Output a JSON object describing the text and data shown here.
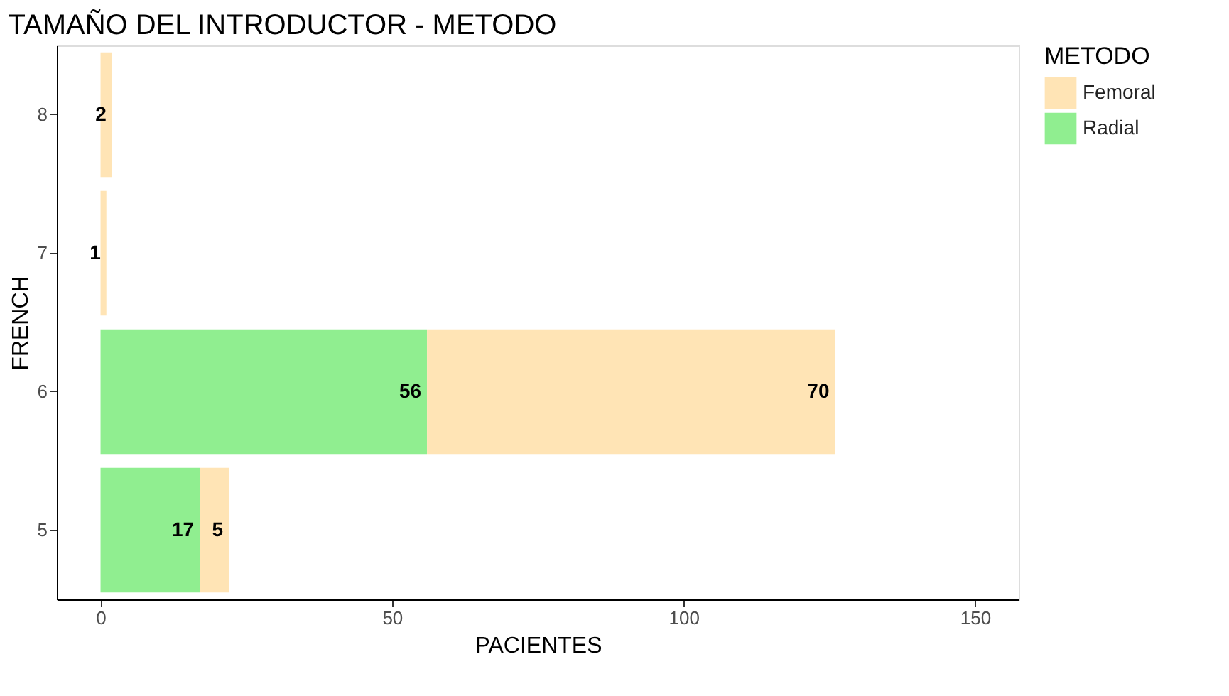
{
  "chart_data": {
    "type": "bar",
    "orientation": "horizontal",
    "stacked": true,
    "title": "TAMAÑO DEL INTRODUCTOR - METODO",
    "xlabel": "PACIENTES",
    "ylabel": "FRENCH",
    "legend_title": "METODO",
    "categories": [
      "8",
      "7",
      "6",
      "5"
    ],
    "series": [
      {
        "name": "Radial",
        "color": "#90ee90",
        "values": [
          null,
          null,
          56,
          17
        ]
      },
      {
        "name": "Femoral",
        "color": "#ffe4b5",
        "values": [
          2,
          1,
          70,
          5
        ]
      }
    ],
    "xlim": [
      -7.5,
      157.5
    ],
    "xticks": [
      0,
      50,
      100,
      150
    ],
    "grid": false,
    "legend": "right",
    "data_labels": true
  }
}
